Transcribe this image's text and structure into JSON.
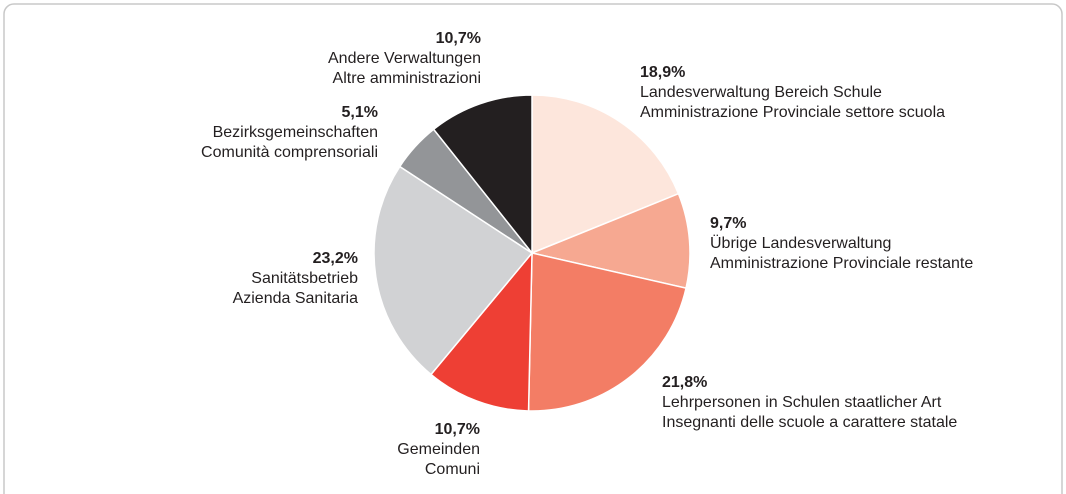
{
  "chart_data": {
    "type": "pie",
    "categories": [
      "Landesverwaltung Bereich Schule",
      "Übrige Landesverwaltung",
      "Lehrpersonen in Schulen staatlicher Art",
      "Gemeinden",
      "Sanitätsbetrieb",
      "Bezirksgemeinschaften",
      "Andere Verwaltungen"
    ],
    "categories_it": [
      "Amministrazione Provinciale settore scuola",
      "Amministrazione Provinciale restante",
      "Insegnanti delle scuole a carattere statale",
      "Comuni",
      "Azienda Sanitaria",
      "Comunità comprensoriali",
      "Altre amministrazioni"
    ],
    "values": [
      18.9,
      9.7,
      21.8,
      10.7,
      23.2,
      5.1,
      10.7
    ],
    "value_labels": [
      "18,9%",
      "9,7%",
      "21,8%",
      "10,7%",
      "23,2%",
      "5,1%",
      "10,7%"
    ],
    "colors": [
      "#fde6dc",
      "#f6a891",
      "#f37d65",
      "#ee3f34",
      "#d1d2d4",
      "#939598",
      "#231f20"
    ]
  }
}
